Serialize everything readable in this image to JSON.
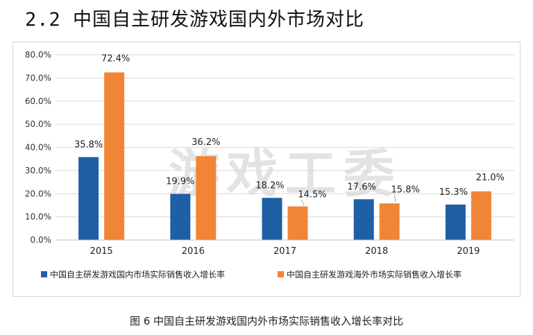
{
  "page": {
    "heading": "2.2 中国自主研发游戏国内外市场对比",
    "caption": "图 6 中国自主研发游戏国内外市场实际销售收入增长率对比",
    "watermark": "游戏工委"
  },
  "chart_data": {
    "type": "bar",
    "title": "",
    "xlabel": "",
    "ylabel": "",
    "categories": [
      "2015",
      "2016",
      "2017",
      "2018",
      "2019"
    ],
    "series": [
      {
        "name": "中国自主研发游戏国内市场实际销售收入增长率",
        "color": "#1f5fa6",
        "values": [
          35.8,
          19.9,
          18.2,
          17.6,
          15.3
        ],
        "labels": [
          "35.8%",
          "19.9%",
          "18.2%",
          "17.6%",
          "15.3%"
        ]
      },
      {
        "name": "中国自主研发游戏海外市场实际销售收入增长率",
        "color": "#f08536",
        "values": [
          72.4,
          36.2,
          14.5,
          15.8,
          21.0
        ],
        "labels": [
          "72.4%",
          "36.2%",
          "14.5%",
          "15.8%",
          "21.0%"
        ]
      }
    ],
    "ylim": [
      0,
      80
    ],
    "yticks": [
      "0.0%",
      "10.0%",
      "20.0%",
      "30.0%",
      "40.0%",
      "50.0%",
      "60.0%",
      "70.0%",
      "80.0%"
    ],
    "grid": true,
    "legend": "bottom"
  }
}
